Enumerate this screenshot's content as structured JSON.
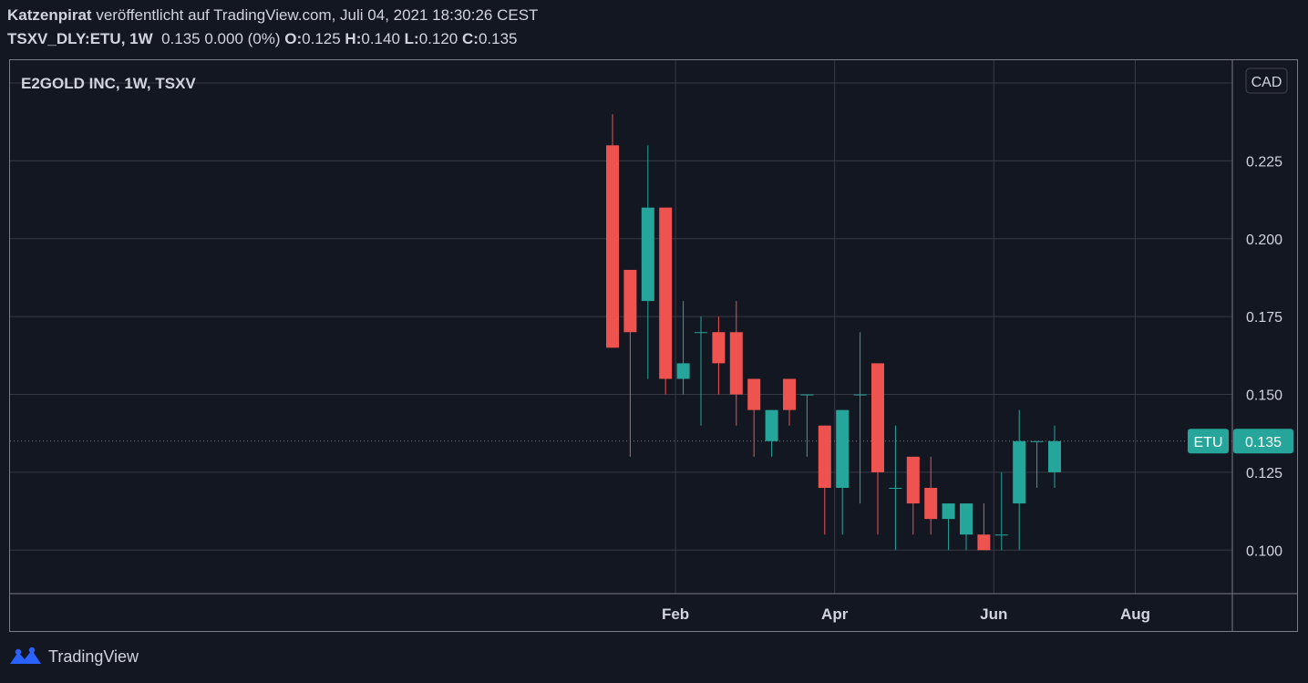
{
  "header": {
    "author": "Katzenpirat",
    "published_text": "veröffentlicht auf TradingView.com, Juli 04, 2021 18:30:26 CEST",
    "symbol_interval": "TSXV_DLY:ETU, 1W",
    "last_change": "0.135 0.000 (0%)",
    "o_label": "O:",
    "o_value": "0.125",
    "h_label": "H:",
    "h_value": "0.140",
    "l_label": "L:",
    "l_value": "0.120",
    "c_label": "C:",
    "c_value": "0.135"
  },
  "chart_title": "E2GOLD INC, 1W, TSXV",
  "currency_button": "CAD",
  "price_tag": {
    "symbol": "ETU",
    "value": "0.135"
  },
  "footer": {
    "brand": "TradingView"
  },
  "colors": {
    "background": "#131722",
    "up": "#26a69a",
    "down": "#ef5350",
    "grid": "#363a45",
    "text": "#d1d4dc"
  },
  "icons": {
    "brand_logo": "tradingview-logo-icon"
  },
  "chart_data": {
    "type": "candlestick",
    "title": "E2GOLD INC, 1W, TSXV",
    "xlabel": "",
    "ylabel": "",
    "ylim": [
      0.085,
      0.245
    ],
    "y_ticks": [
      0.1,
      0.125,
      0.15,
      0.175,
      0.2,
      0.225
    ],
    "y_tick_labels": [
      "0.100",
      "0.125",
      "0.150",
      "0.175",
      "0.200",
      "0.225"
    ],
    "x_tick_labels": [
      "Feb",
      "Apr",
      "Jun",
      "Aug"
    ],
    "grid": true,
    "last_price": 0.135,
    "candles": [
      {
        "week": "2021-01-04",
        "open": 0.23,
        "high": 0.24,
        "low": 0.165,
        "close": 0.165
      },
      {
        "week": "2021-01-11",
        "open": 0.19,
        "high": 0.19,
        "low": 0.13,
        "close": 0.17
      },
      {
        "week": "2021-01-18",
        "open": 0.18,
        "high": 0.23,
        "low": 0.155,
        "close": 0.21
      },
      {
        "week": "2021-01-25",
        "open": 0.21,
        "high": 0.21,
        "low": 0.15,
        "close": 0.155
      },
      {
        "week": "2021-02-01",
        "open": 0.155,
        "high": 0.18,
        "low": 0.15,
        "close": 0.16
      },
      {
        "week": "2021-02-08",
        "open": 0.17,
        "high": 0.175,
        "low": 0.14,
        "close": 0.17
      },
      {
        "week": "2021-02-15",
        "open": 0.17,
        "high": 0.175,
        "low": 0.15,
        "close": 0.16
      },
      {
        "week": "2021-02-22",
        "open": 0.17,
        "high": 0.18,
        "low": 0.14,
        "close": 0.15
      },
      {
        "week": "2021-03-01",
        "open": 0.155,
        "high": 0.155,
        "low": 0.13,
        "close": 0.145
      },
      {
        "week": "2021-03-08",
        "open": 0.135,
        "high": 0.145,
        "low": 0.13,
        "close": 0.145
      },
      {
        "week": "2021-03-15",
        "open": 0.155,
        "high": 0.155,
        "low": 0.14,
        "close": 0.145
      },
      {
        "week": "2021-03-22",
        "open": 0.15,
        "high": 0.15,
        "low": 0.13,
        "close": 0.15
      },
      {
        "week": "2021-03-29",
        "open": 0.14,
        "high": 0.14,
        "low": 0.105,
        "close": 0.12
      },
      {
        "week": "2021-04-05",
        "open": 0.12,
        "high": 0.145,
        "low": 0.105,
        "close": 0.145
      },
      {
        "week": "2021-04-12",
        "open": 0.15,
        "high": 0.17,
        "low": 0.115,
        "close": 0.15
      },
      {
        "week": "2021-04-19",
        "open": 0.16,
        "high": 0.16,
        "low": 0.105,
        "close": 0.125
      },
      {
        "week": "2021-04-26",
        "open": 0.12,
        "high": 0.14,
        "low": 0.1,
        "close": 0.12
      },
      {
        "week": "2021-05-03",
        "open": 0.13,
        "high": 0.13,
        "low": 0.105,
        "close": 0.115
      },
      {
        "week": "2021-05-10",
        "open": 0.12,
        "high": 0.13,
        "low": 0.105,
        "close": 0.11
      },
      {
        "week": "2021-05-17",
        "open": 0.11,
        "high": 0.115,
        "low": 0.1,
        "close": 0.115
      },
      {
        "week": "2021-05-24",
        "open": 0.105,
        "high": 0.115,
        "low": 0.1,
        "close": 0.115
      },
      {
        "week": "2021-05-31",
        "open": 0.105,
        "high": 0.115,
        "low": 0.1,
        "close": 0.1
      },
      {
        "week": "2021-06-07",
        "open": 0.105,
        "high": 0.125,
        "low": 0.1,
        "close": 0.105
      },
      {
        "week": "2021-06-14",
        "open": 0.115,
        "high": 0.145,
        "low": 0.1,
        "close": 0.135
      },
      {
        "week": "2021-06-21",
        "open": 0.135,
        "high": 0.135,
        "low": 0.12,
        "close": 0.135
      },
      {
        "week": "2021-06-28",
        "open": 0.125,
        "high": 0.14,
        "low": 0.12,
        "close": 0.135
      }
    ]
  }
}
